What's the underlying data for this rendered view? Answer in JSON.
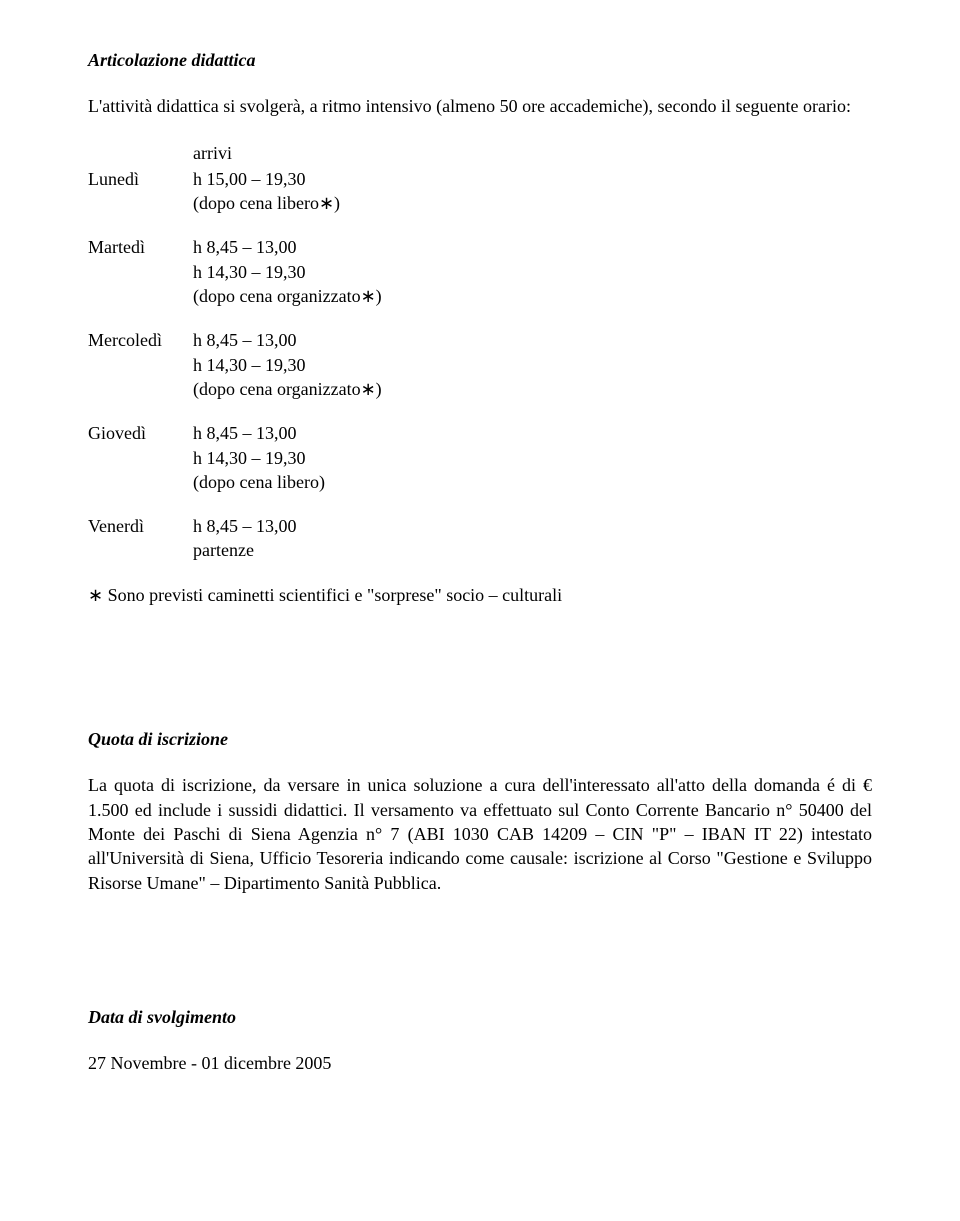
{
  "doc": {
    "heading1": "Articolazione didattica",
    "intro": "L'attività didattica si svolgerà, a ritmo intensivo (almeno 50 ore accademiche), secondo il seguente orario:",
    "arrivi_label": "arrivi",
    "schedule": [
      {
        "day": "Lunedì",
        "lines": [
          "h 15,00 – 19,30",
          "(dopo cena libero∗)"
        ]
      },
      {
        "day": "Martedì",
        "lines": [
          "h 8,45 – 13,00",
          "h 14,30 – 19,30",
          "(dopo cena organizzato∗)"
        ]
      },
      {
        "day": "Mercoledì",
        "lines": [
          "h 8,45 – 13,00",
          "h 14,30 – 19,30",
          "(dopo cena organizzato∗)"
        ]
      },
      {
        "day": "Giovedì",
        "lines": [
          "h 8,45 – 13,00",
          "h 14,30 – 19,30",
          "(dopo cena libero)"
        ]
      },
      {
        "day": "Venerdì",
        "lines": [
          "h 8,45 – 13,00",
          "partenze"
        ]
      }
    ],
    "footnote": "∗ Sono previsti caminetti scientifici e \"sorprese\" socio – culturali",
    "heading2": "Quota di iscrizione",
    "quota_text": "La quota di iscrizione, da versare in unica soluzione a cura dell'interessato all'atto della domanda é di € 1.500 ed include i sussidi didattici. Il versamento va effettuato sul Conto Corrente Bancario n° 50400 del Monte dei Paschi di Siena Agenzia n° 7 (ABI 1030 CAB 14209 – CIN \"P\" – IBAN IT 22) intestato all'Università di Siena, Ufficio Tesoreria indicando come causale: iscrizione al Corso \"Gestione e Sviluppo Risorse Umane\" – Dipartimento Sanità Pubblica.",
    "heading3": "Data di svolgimento",
    "date_value": "27 Novembre - 01 dicembre 2005"
  }
}
